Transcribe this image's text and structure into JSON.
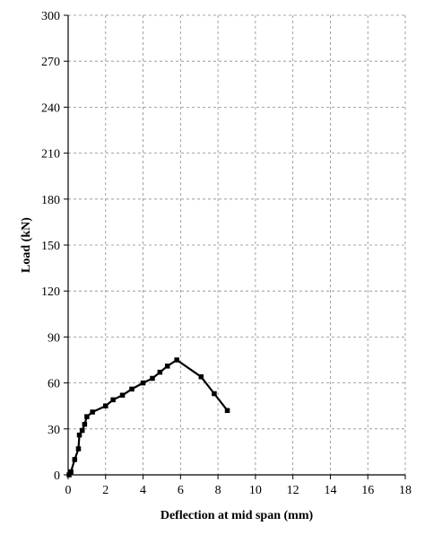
{
  "chart_data": {
    "type": "line",
    "title": "",
    "xlabel": "Deflection at mid span (mm)",
    "ylabel": "Load (kN)",
    "xlim": [
      0,
      18
    ],
    "ylim": [
      0,
      300
    ],
    "xticks": [
      0,
      2,
      4,
      6,
      8,
      10,
      12,
      14,
      16,
      18
    ],
    "yticks": [
      0,
      30,
      60,
      90,
      120,
      150,
      180,
      210,
      240,
      270,
      300
    ],
    "x_tick_labels": [
      "0",
      "2",
      "4",
      "6",
      "8",
      "10",
      "12",
      "14",
      "16",
      "18"
    ],
    "y_tick_labels": [
      "0",
      "30",
      "60",
      "90",
      "120",
      "150",
      "180",
      "210",
      "240",
      "270",
      "300"
    ],
    "grid": true,
    "grid_style": "dashed",
    "legend": "none",
    "series": [
      {
        "marker": "square",
        "color": "#000000",
        "x": [
          0.05,
          0.15,
          0.35,
          0.55,
          0.6,
          0.75,
          0.88,
          1.0,
          1.3,
          2.0,
          2.4,
          2.9,
          3.4,
          4.0,
          4.5,
          4.9,
          5.3,
          5.8,
          7.1,
          7.8,
          8.5
        ],
        "y": [
          0,
          2,
          10,
          17,
          26,
          29,
          33,
          38,
          41,
          45,
          49,
          52,
          56,
          60,
          63,
          67,
          71,
          75,
          64,
          53,
          42
        ]
      }
    ]
  }
}
